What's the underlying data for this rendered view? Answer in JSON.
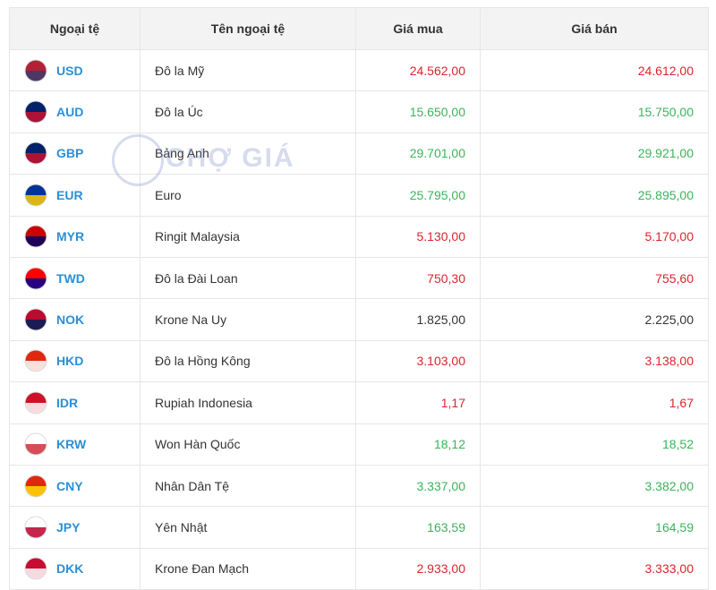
{
  "table": {
    "headers": [
      "Ngoại tệ",
      "Tên ngoại tệ",
      "Giá mua",
      "Giá bán"
    ],
    "rows": [
      {
        "code": "USD",
        "name": "Đô la Mỹ",
        "buy": "24.562,00",
        "sell": "24.612,00",
        "color": "#d9262c"
      },
      {
        "code": "AUD",
        "name": "Đô la Úc",
        "buy": "15.650,00",
        "sell": "15.750,00",
        "color": "#3cb35a"
      },
      {
        "code": "GBP",
        "name": "Bảng Anh",
        "buy": "29.701,00",
        "sell": "29.921,00",
        "color": "#3cb35a"
      },
      {
        "code": "EUR",
        "name": "Euro",
        "buy": "25.795,00",
        "sell": "25.895,00",
        "color": "#3cb35a"
      },
      {
        "code": "MYR",
        "name": "Ringit Malaysia",
        "buy": "5.130,00",
        "sell": "5.170,00",
        "color": "#d9262c"
      },
      {
        "code": "TWD",
        "name": "Đô la Đài Loan",
        "buy": "750,30",
        "sell": "755,60",
        "color": "#d9262c"
      },
      {
        "code": "NOK",
        "name": "Krone Na Uy",
        "buy": "1.825,00",
        "sell": "2.225,00",
        "color": "#333333"
      },
      {
        "code": "HKD",
        "name": "Đô la Hồng Kông",
        "buy": "3.103,00",
        "sell": "3.138,00",
        "color": "#d9262c"
      },
      {
        "code": "IDR",
        "name": "Rupiah Indonesia",
        "buy": "1,17",
        "sell": "1,67",
        "color": "#d9262c"
      },
      {
        "code": "KRW",
        "name": "Won Hàn Quốc",
        "buy": "18,12",
        "sell": "18,52",
        "color": "#3cb35a"
      },
      {
        "code": "CNY",
        "name": "Nhân Dân Tệ",
        "buy": "3.337,00",
        "sell": "3.382,00",
        "color": "#3cb35a"
      },
      {
        "code": "JPY",
        "name": "Yên Nhật",
        "buy": "163,59",
        "sell": "164,59",
        "color": "#3cb35a"
      },
      {
        "code": "DKK",
        "name": "Krone Đan Mạch",
        "buy": "2.933,00",
        "sell": "3.333,00",
        "color": "#d9262c"
      }
    ]
  },
  "watermark": "CHỢ GIÁ"
}
